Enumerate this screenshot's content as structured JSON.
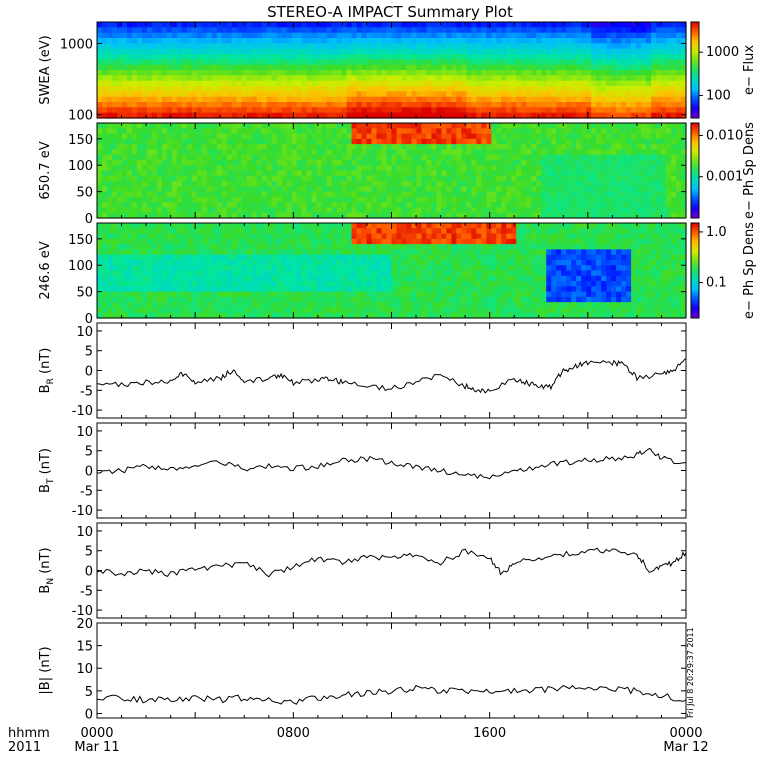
{
  "title": "STEREO-A IMPACT Summary Plot",
  "timestamp": "Fri Jul 8 20:29:37 2011",
  "time_axis": {
    "corner_top": "hhmm",
    "corner_bottom": "2011",
    "ticks": [
      {
        "top": "0000",
        "bottom": "Mar 11",
        "hour": 0
      },
      {
        "top": "0800",
        "bottom": "",
        "hour": 8
      },
      {
        "top": "1600",
        "bottom": "",
        "hour": 16
      },
      {
        "top": "0000",
        "bottom": "Mar 12",
        "hour": 24
      }
    ]
  },
  "chart_data": [
    {
      "type": "heatmap",
      "ylabel": "SWEA (eV)",
      "ylog": true,
      "ylim": [
        90,
        2000
      ],
      "yticks": [
        {
          "v": 100,
          "label": "100"
        },
        {
          "v": 1000,
          "label": "1000"
        }
      ],
      "colorbar": {
        "label": "e− Flux",
        "log": true,
        "ticks": [
          {
            "v": 100,
            "label": "100"
          },
          {
            "v": 1000,
            "label": "1000"
          }
        ],
        "range": [
          30,
          5000
        ]
      },
      "description_levels": "low energy high flux (red) at bottom, decreasing upward to blue near top"
    },
    {
      "type": "heatmap",
      "ylabel": "650.7 eV",
      "ylim": [
        0,
        180
      ],
      "yticks": [
        {
          "v": 0,
          "label": "0"
        },
        {
          "v": 50,
          "label": "50"
        },
        {
          "v": 100,
          "label": "100"
        },
        {
          "v": 150,
          "label": "150"
        }
      ],
      "colorbar": {
        "label": "e− Ph Sp Dens",
        "log": true,
        "ticks": [
          {
            "v": 0.001,
            "label": "0.001"
          },
          {
            "v": 0.01,
            "label": "0.010"
          }
        ],
        "range": [
          0.0001,
          0.02
        ]
      }
    },
    {
      "type": "heatmap",
      "ylabel": "246.6 eV",
      "ylim": [
        0,
        180
      ],
      "yticks": [
        {
          "v": 0,
          "label": "0"
        },
        {
          "v": 50,
          "label": "50"
        },
        {
          "v": 100,
          "label": "100"
        },
        {
          "v": 150,
          "label": "150"
        }
      ],
      "colorbar": {
        "label": "e− Ph Sp Dens",
        "log": true,
        "ticks": [
          {
            "v": 0.1,
            "label": "0.1"
          },
          {
            "v": 1.0,
            "label": "1.0"
          }
        ],
        "range": [
          0.02,
          1.5
        ]
      }
    },
    {
      "type": "line",
      "ylabel": "B_R (nT)",
      "ylabel_main": "B",
      "ylabel_sub": "R",
      "ylabel_unit": " (nT)",
      "ylim": [
        -12,
        12
      ],
      "yticks": [
        -10,
        -5,
        0,
        5,
        10
      ],
      "x": [
        0,
        1,
        2,
        3,
        3.5,
        4,
        5,
        5.5,
        6,
        7,
        7.5,
        8,
        9,
        9.5,
        10,
        11,
        12,
        13,
        14,
        15,
        15.5,
        16,
        17,
        17.5,
        18,
        18.5,
        19,
        19.5,
        20,
        21,
        21.5,
        22,
        23,
        23.5,
        24
      ],
      "y": [
        -3,
        -3.5,
        -3,
        -2.5,
        -1,
        -3,
        -2,
        0,
        -3,
        -2,
        -1,
        -3,
        -2.5,
        -2,
        -3,
        -4,
        -4.5,
        -3,
        -1,
        -4,
        -5,
        -5,
        -2,
        -3,
        -4,
        -4,
        0,
        1,
        2,
        2,
        1.5,
        -2,
        -1,
        0,
        3
      ]
    },
    {
      "type": "line",
      "ylabel": "B_T (nT)",
      "ylabel_main": "B",
      "ylabel_sub": "T",
      "ylabel_unit": " (nT)",
      "ylim": [
        -12,
        12
      ],
      "yticks": [
        -10,
        -5,
        0,
        5,
        10
      ],
      "x": [
        0,
        1,
        2,
        3,
        4,
        5,
        6,
        7,
        8,
        9,
        10,
        11,
        12,
        13,
        14,
        15,
        16,
        17,
        18,
        19,
        20,
        21,
        22,
        22.5,
        23,
        24
      ],
      "y": [
        -0.5,
        0,
        1,
        0.5,
        1,
        2,
        0.5,
        1,
        0.5,
        1,
        2.5,
        3,
        2,
        1,
        0,
        -1,
        -1.5,
        -0.5,
        1,
        2,
        2.5,
        3,
        4,
        5,
        3,
        2
      ]
    },
    {
      "type": "line",
      "ylabel": "B_N (nT)",
      "ylabel_main": "B",
      "ylabel_sub": "N",
      "ylabel_unit": " (nT)",
      "ylim": [
        -12,
        12
      ],
      "yticks": [
        -10,
        -5,
        0,
        5,
        10
      ],
      "x": [
        0,
        1,
        2,
        3,
        4,
        5,
        6,
        7,
        8,
        9,
        10,
        11,
        12,
        13,
        14,
        15,
        16,
        16.5,
        17,
        18,
        19,
        20,
        21,
        22,
        22.5,
        23,
        23.5,
        24
      ],
      "y": [
        0,
        -1,
        0,
        -1,
        0.5,
        1,
        2,
        -1,
        1,
        3,
        2,
        3.5,
        3,
        4,
        2,
        5,
        3,
        -1,
        2,
        3,
        4,
        5,
        5,
        4,
        0,
        1,
        2,
        4.5
      ]
    },
    {
      "type": "line",
      "ylabel": "|B| (nT)",
      "ylabel_main": "|B|",
      "ylabel_sub": "",
      "ylabel_unit": " (nT)",
      "ylim": [
        -1,
        20
      ],
      "yticks": [
        0,
        5,
        10,
        15,
        20
      ],
      "x": [
        0,
        1,
        2,
        3,
        4,
        5,
        6,
        7,
        8,
        9,
        10,
        11,
        12,
        13,
        14,
        15,
        16,
        17,
        18,
        19,
        20,
        21,
        22,
        23,
        24
      ],
      "y": [
        3.5,
        3.5,
        3,
        3,
        3.5,
        3,
        3.5,
        3,
        2.5,
        3.5,
        4,
        4.5,
        5,
        5.5,
        5,
        5,
        5,
        5,
        5.2,
        5.5,
        5.5,
        5.5,
        5,
        4,
        3
      ]
    }
  ],
  "colors": {
    "ink": "#000000",
    "gap": "#ffffff"
  }
}
